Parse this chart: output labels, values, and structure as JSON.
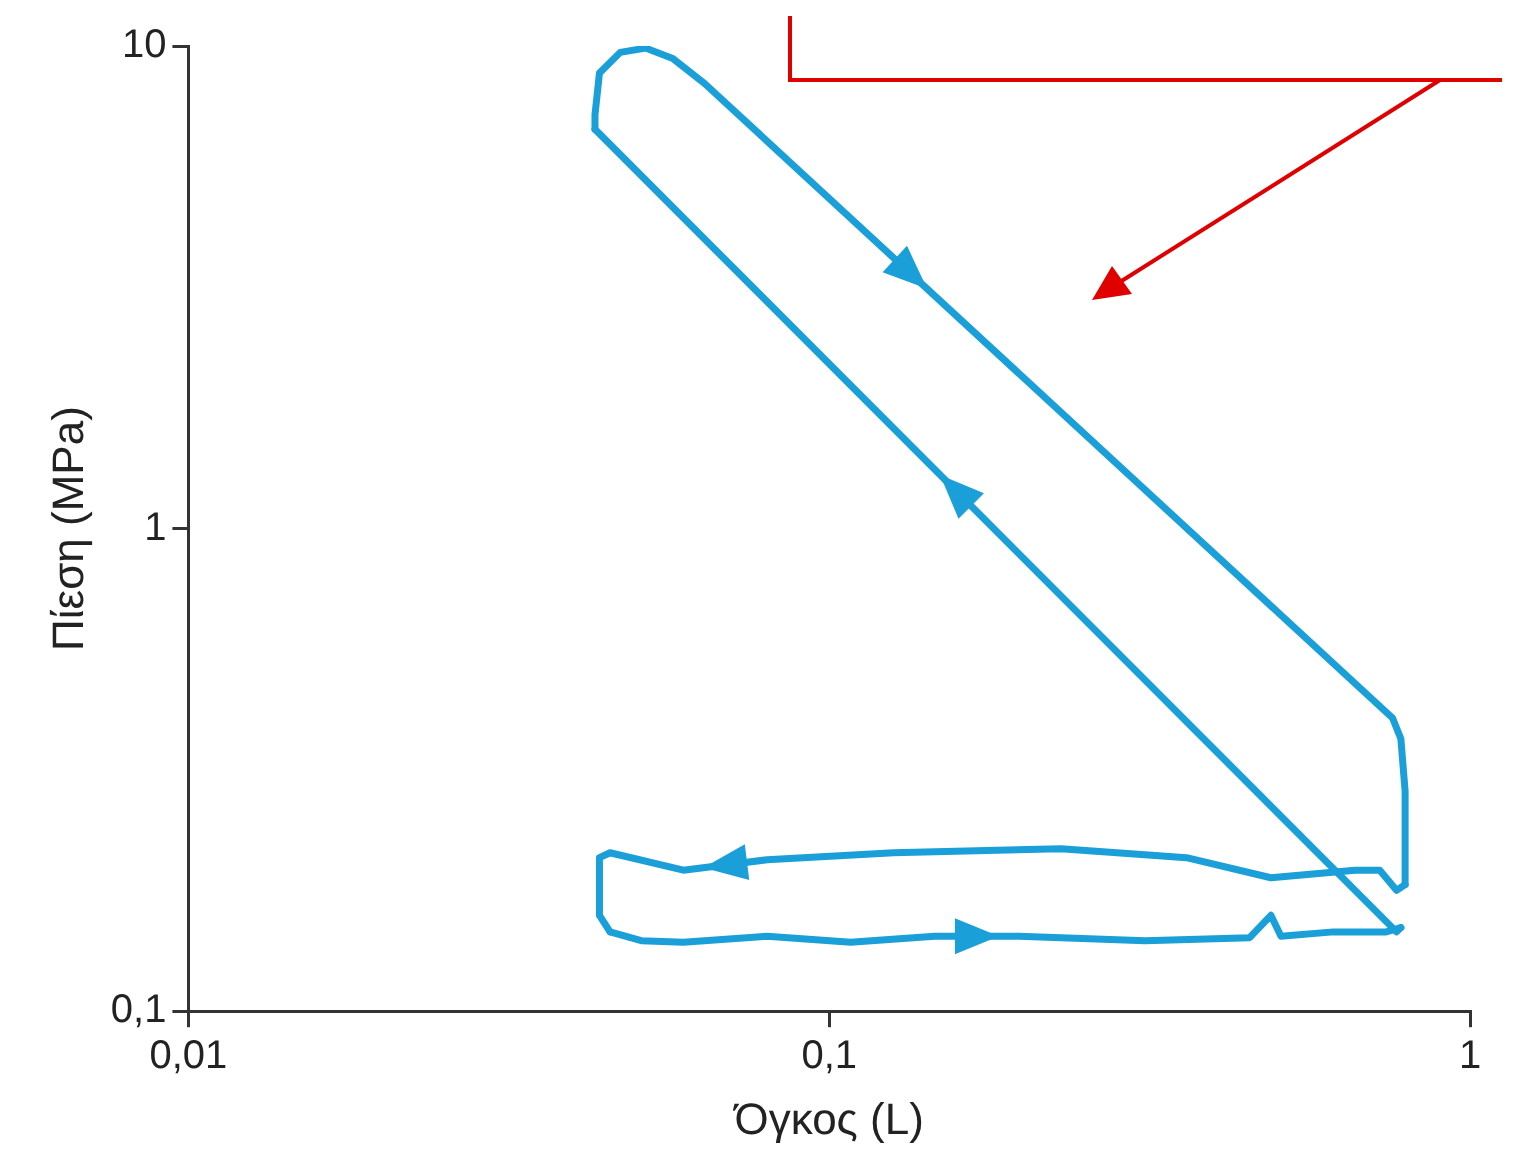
{
  "chart_data": {
    "type": "line",
    "xlabel": "Όγκος (L)",
    "ylabel": "Πίεση (MPa)",
    "series": [
      {
        "color": "#1a9fd8",
        "x": [
          0.0455,
          0.0509,
          0.0592,
          0.08,
          0.108,
          0.146,
          0.198,
          0.311,
          0.453,
          0.489,
          0.507,
          0.612,
          0.74,
          0.78
        ],
        "values": [
          0.146,
          0.14,
          0.139,
          0.143,
          0.139,
          0.143,
          0.143,
          0.14,
          0.142,
          0.158,
          0.143,
          0.146,
          0.146,
          0.149
        ]
      },
      {
        "color": "#1a9fd8",
        "x": [
          0.78,
          0.768,
          0.0431
        ],
        "values": [
          0.149,
          0.146,
          6.72
        ]
      },
      {
        "color": "#1a9fd8",
        "x": [
          0.0431,
          0.0431,
          0.0438,
          0.0472,
          0.0517,
          0.057,
          0.0639,
          0.757,
          0.78,
          0.792,
          0.792
        ],
        "values": [
          6.72,
          7.21,
          8.79,
          9.7,
          9.9,
          9.42,
          8.36,
          0.405,
          0.367,
          0.286,
          0.183
        ]
      },
      {
        "color": "#1a9fd8",
        "x": [
          0.792,
          0.768,
          0.723,
          0.661,
          0.489,
          0.361,
          0.23,
          0.126,
          0.08,
          0.0592,
          0.0455,
          0.0438,
          0.0438,
          0.0455
        ],
        "values": [
          0.183,
          0.178,
          0.196,
          0.196,
          0.189,
          0.208,
          0.217,
          0.213,
          0.206,
          0.196,
          0.213,
          0.208,
          0.158,
          0.146
        ]
      }
    ],
    "xlim": [
      0.01,
      1
    ],
    "ylim": [
      0.1,
      10
    ],
    "xticks": [
      {
        "value": 0.01,
        "label": "0,01"
      },
      {
        "value": 0.1,
        "label": "0,1"
      },
      1
    ],
    "yticks": [
      {
        "value": 0.1,
        "label": "0,1"
      },
      1,
      10
    ],
    "log": "xy",
    "grid": false,
    "legend": false,
    "marker": "none",
    "line_style": "solid"
  }
}
